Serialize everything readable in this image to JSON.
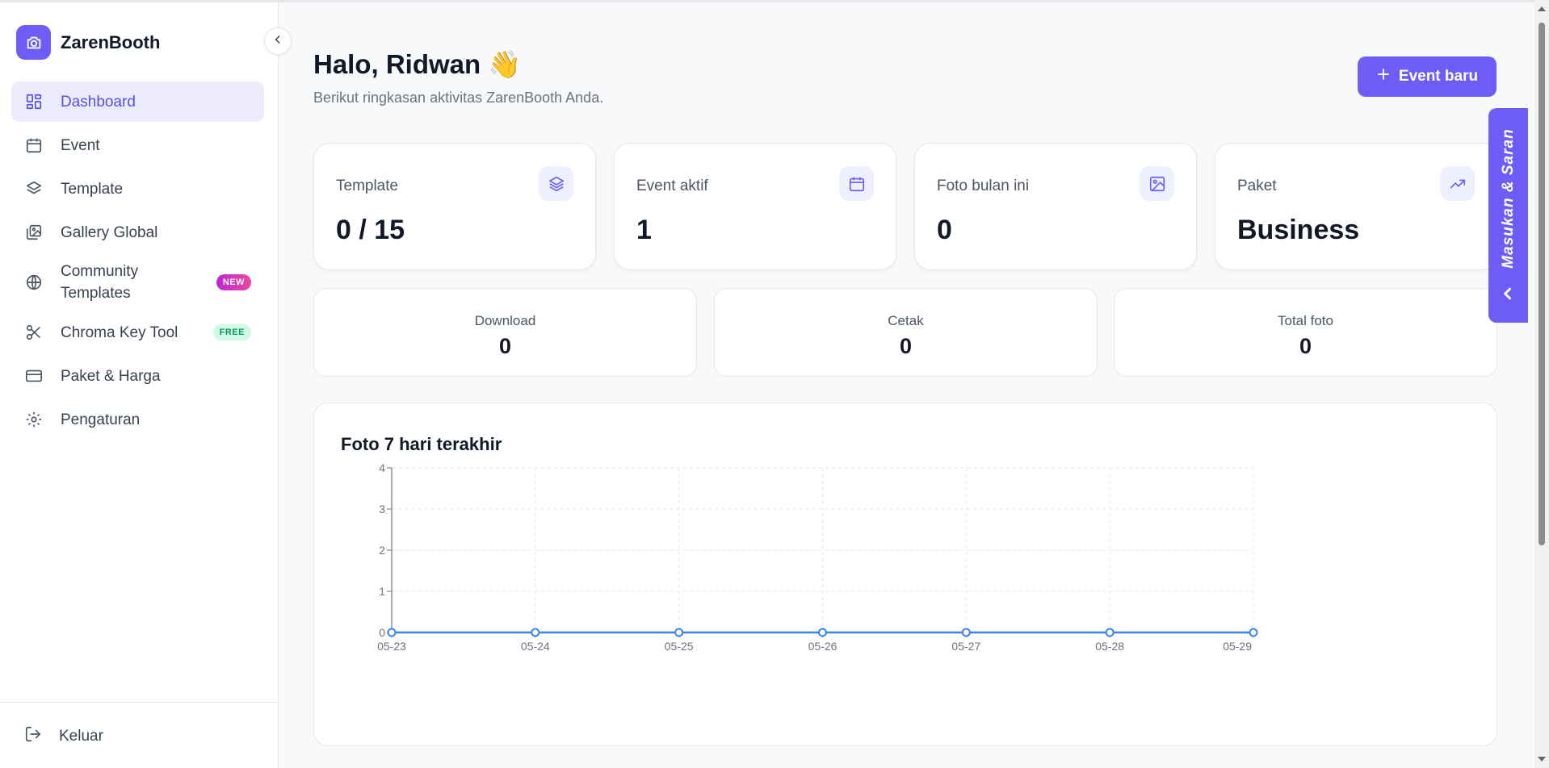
{
  "app": {
    "name": "ZarenBooth"
  },
  "sidebar": {
    "items": [
      {
        "label": "Dashboard",
        "icon": "dashboard-icon",
        "active": true
      },
      {
        "label": "Event",
        "icon": "calendar-icon"
      },
      {
        "label": "Template",
        "icon": "layers-icon"
      },
      {
        "label": "Gallery Global",
        "icon": "gallery-icon"
      },
      {
        "label": "Community Templates",
        "icon": "globe-icon",
        "badge": "NEW"
      },
      {
        "label": "Chroma Key Tool",
        "icon": "scissors-icon",
        "badge": "FREE"
      },
      {
        "label": "Paket & Harga",
        "icon": "credit-card-icon"
      },
      {
        "label": "Pengaturan",
        "icon": "gear-icon"
      }
    ],
    "logout_label": "Keluar"
  },
  "header": {
    "greeting": "Halo, Ridwan 👋",
    "subtitle": "Berikut ringkasan aktivitas ZarenBooth Anda.",
    "new_event_label": "Event baru"
  },
  "stats": [
    {
      "label": "Template",
      "value": "0 / 15",
      "icon": "layers-icon"
    },
    {
      "label": "Event aktif",
      "value": "1",
      "icon": "calendar-icon"
    },
    {
      "label": "Foto bulan ini",
      "value": "0",
      "icon": "image-icon"
    },
    {
      "label": "Paket",
      "value": "Business",
      "icon": "trending-up-icon"
    }
  ],
  "mini_stats": [
    {
      "label": "Download",
      "value": "0"
    },
    {
      "label": "Cetak",
      "value": "0"
    },
    {
      "label": "Total foto",
      "value": "0"
    }
  ],
  "feedback": {
    "label": "Masukan & Saran"
  },
  "colors": {
    "accent": "#6d5df6",
    "line": "#3b82f6",
    "active_bg": "#ecebfd"
  },
  "chart_data": {
    "type": "line",
    "title": "Foto 7 hari terakhir",
    "x": [
      "05-23",
      "05-24",
      "05-25",
      "05-26",
      "05-27",
      "05-28",
      "05-29"
    ],
    "values": [
      0,
      0,
      0,
      0,
      0,
      0,
      0
    ],
    "yticks": [
      0,
      1,
      2,
      3,
      4
    ],
    "ylim": [
      0,
      4
    ],
    "grid": true
  }
}
